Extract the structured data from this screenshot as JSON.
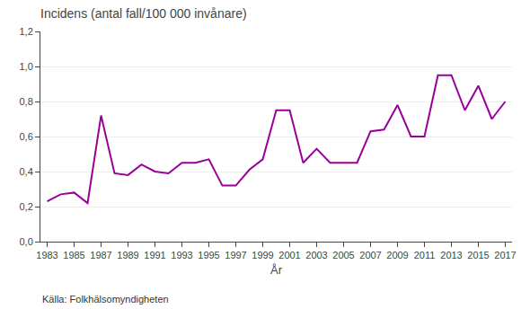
{
  "chart_data": {
    "type": "line",
    "title": "Incidens (antal fall/100 000 invånare)",
    "x_label": "År",
    "source": "Källa: Folkhälsomyndigheten",
    "x": [
      1983,
      1984,
      1985,
      1986,
      1987,
      1988,
      1989,
      1990,
      1991,
      1992,
      1993,
      1994,
      1995,
      1996,
      1997,
      1998,
      1999,
      2000,
      2001,
      2002,
      2003,
      2004,
      2005,
      2006,
      2007,
      2008,
      2009,
      2010,
      2011,
      2012,
      2013,
      2014,
      2015,
      2016,
      2017
    ],
    "values": [
      0.23,
      0.27,
      0.28,
      0.22,
      0.72,
      0.39,
      0.38,
      0.44,
      0.4,
      0.39,
      0.45,
      0.45,
      0.47,
      0.32,
      0.32,
      0.41,
      0.47,
      0.75,
      0.75,
      0.45,
      0.53,
      0.45,
      0.45,
      0.45,
      0.63,
      0.64,
      0.78,
      0.6,
      0.6,
      0.95,
      0.95,
      0.75,
      0.89,
      0.7,
      0.8
    ],
    "color": "#990099",
    "xlim": [
      1982.5,
      2017.5
    ],
    "xticks": [
      1983,
      1985,
      1987,
      1989,
      1991,
      1993,
      1995,
      1997,
      1999,
      2001,
      2003,
      2005,
      2007,
      2009,
      2011,
      2013,
      2015,
      2017
    ],
    "ylim": [
      0.0,
      1.2
    ],
    "yticks": [
      {
        "value": 0.0,
        "label": "0,0"
      },
      {
        "value": 0.2,
        "label": "0,2"
      },
      {
        "value": 0.4,
        "label": "0,4"
      },
      {
        "value": 0.6,
        "label": "0,6"
      },
      {
        "value": 0.8,
        "label": "0,8"
      },
      {
        "value": 1.0,
        "label": "1,0"
      },
      {
        "value": 1.2,
        "label": "1,2"
      }
    ],
    "grid": true
  }
}
